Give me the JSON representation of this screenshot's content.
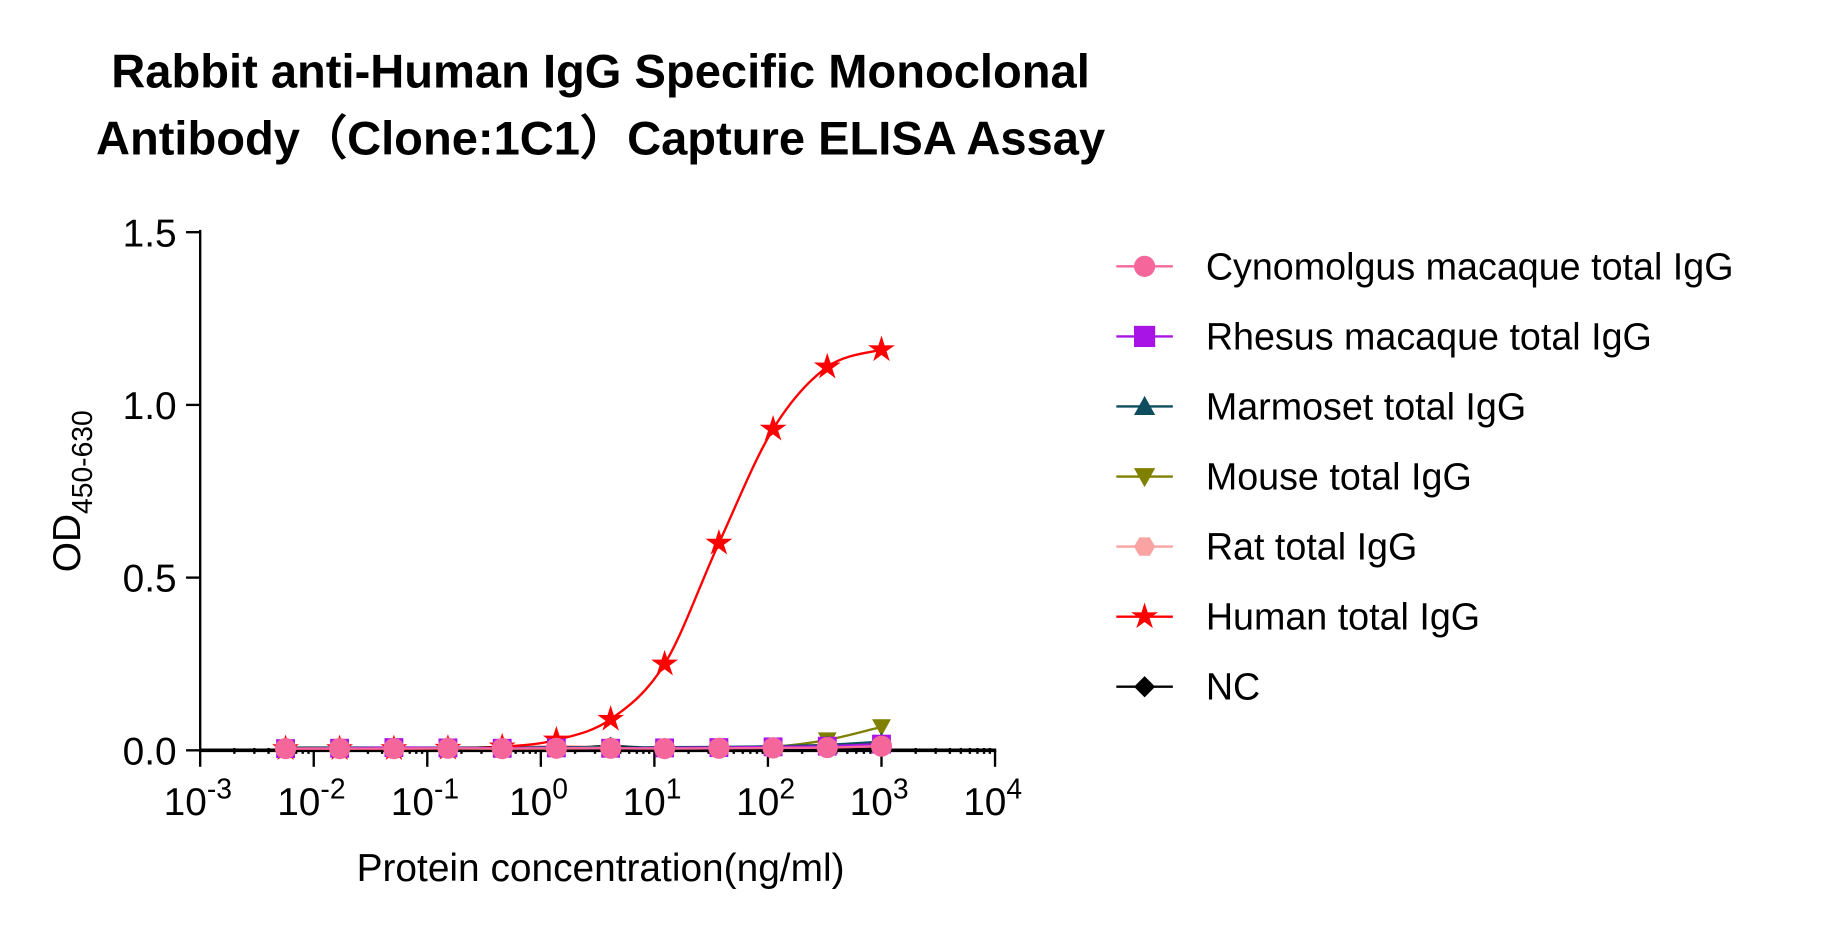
{
  "chart_data": {
    "type": "line",
    "title_lines": [
      "Rabbit anti-Human IgG Specific Monoclonal",
      "Antibody（Clone:1C1）Capture ELISA Assay"
    ],
    "xlabel": "Protein concentration(ng/ml)",
    "ylabel": "OD",
    "ylabel_sub": "450-630",
    "x_scale": "log10",
    "xlim": [
      0.001,
      10000
    ],
    "ylim": [
      0,
      1.5
    ],
    "x_ticks": [
      {
        "base": "10",
        "exp": "-3",
        "value": 0.001
      },
      {
        "base": "10",
        "exp": "-2",
        "value": 0.01
      },
      {
        "base": "10",
        "exp": "-1",
        "value": 0.1
      },
      {
        "base": "10",
        "exp": "0",
        "value": 1
      },
      {
        "base": "10",
        "exp": "1",
        "value": 10
      },
      {
        "base": "10",
        "exp": "2",
        "value": 100
      },
      {
        "base": "10",
        "exp": "3",
        "value": 1000
      },
      {
        "base": "10",
        "exp": "4",
        "value": 10000
      }
    ],
    "y_ticks": [
      {
        "label": "0.0",
        "value": 0
      },
      {
        "label": "0.5",
        "value": 0.5
      },
      {
        "label": "1.0",
        "value": 1.0
      },
      {
        "label": "1.5",
        "value": 1.5
      }
    ],
    "grid": false,
    "legend_position": "right",
    "x": [
      0.00565,
      0.0169,
      0.0508,
      0.152,
      0.457,
      1.37,
      4.12,
      12.3,
      37.0,
      111,
      333,
      1000
    ],
    "series": [
      {
        "name": "Cynomolgus macaque total IgG",
        "marker": "circle",
        "color": "#F5669A",
        "values": [
          0.005,
          0.005,
          0.005,
          0.006,
          0.005,
          0.006,
          0.006,
          0.005,
          0.006,
          0.007,
          0.008,
          0.012
        ]
      },
      {
        "name": "Rhesus macaque total IgG",
        "marker": "square",
        "color": "#A914E6",
        "values": [
          0.005,
          0.006,
          0.008,
          0.007,
          0.006,
          0.007,
          0.006,
          0.007,
          0.008,
          0.01,
          0.012,
          0.018
        ]
      },
      {
        "name": "Marmoset total IgG",
        "marker": "triangle-up",
        "color": "#0E4D5E",
        "values": [
          0.008,
          0.008,
          0.008,
          0.008,
          0.008,
          0.009,
          0.008,
          0.009,
          0.01,
          0.012,
          0.016,
          0.025
        ]
      },
      {
        "name": "Mouse total IgG",
        "marker": "triangle-down",
        "color": "#7F7F00",
        "values": [
          0.005,
          0.005,
          0.005,
          0.005,
          0.005,
          0.005,
          0.006,
          0.006,
          0.007,
          0.01,
          0.03,
          0.068
        ]
      },
      {
        "name": "Rat total IgG",
        "marker": "hexagon",
        "color": "#F9A3A3",
        "values": [
          0.006,
          0.006,
          0.006,
          0.006,
          0.008,
          0.012,
          0.008,
          0.007,
          0.007,
          0.008,
          0.009,
          0.012
        ]
      },
      {
        "name": "Human total IgG",
        "marker": "star",
        "color": "#FF0000",
        "values": [
          0.005,
          0.005,
          0.005,
          0.006,
          0.01,
          0.03,
          0.09,
          0.25,
          0.6,
          0.93,
          1.11,
          1.16
        ]
      },
      {
        "name": "NC",
        "marker": "diamond",
        "color": "#000000",
        "values": [
          0.004,
          0.004,
          0.004,
          0.005,
          0.01,
          0.006,
          0.012,
          0.005,
          0.005,
          0.005,
          0.005,
          0.006
        ]
      }
    ]
  }
}
